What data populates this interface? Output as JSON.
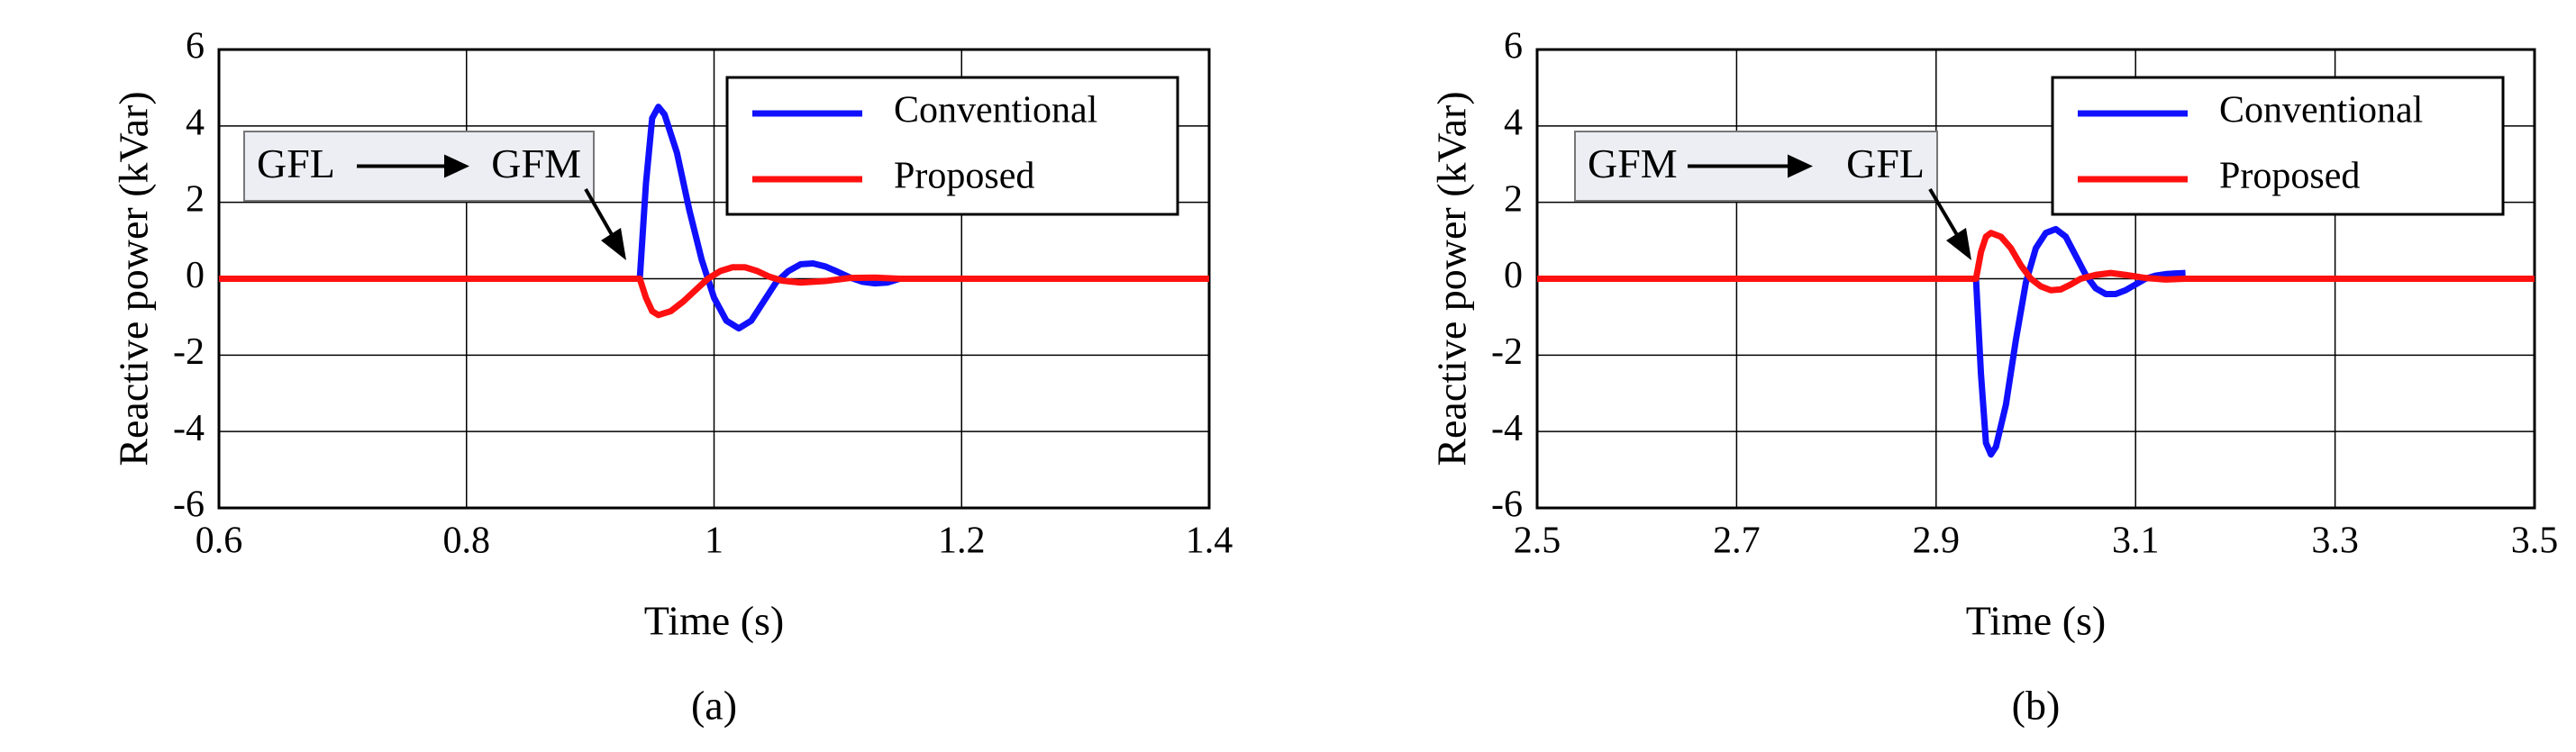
{
  "chart_data": [
    {
      "type": "line",
      "y_label": "Reactive power (kVar)",
      "x_label": "Time (s)",
      "caption": "(a)",
      "xlim": [
        0.6,
        1.4
      ],
      "xticks": [
        0.6,
        0.8,
        1,
        1.2,
        1.4
      ],
      "ylim": [
        -6,
        6
      ],
      "yticks": [
        -6,
        -4,
        -2,
        0,
        2,
        4,
        6
      ],
      "grid": true,
      "legend": "upper right",
      "annotation": {
        "from": "GFL",
        "to": "GFM"
      },
      "series": [
        {
          "name": "Conventional",
          "color": "#1010ff",
          "x": [
            0.94,
            0.945,
            0.95,
            0.955,
            0.96,
            0.97,
            0.98,
            0.99,
            1.0,
            1.01,
            1.02,
            1.03,
            1.04,
            1.05,
            1.06,
            1.07,
            1.08,
            1.09,
            1.1,
            1.11,
            1.12,
            1.13,
            1.14,
            1.15
          ],
          "values": [
            0,
            2.5,
            4.2,
            4.5,
            4.3,
            3.3,
            1.8,
            0.5,
            -0.5,
            -1.1,
            -1.3,
            -1.1,
            -0.6,
            -0.1,
            0.2,
            0.38,
            0.4,
            0.32,
            0.18,
            0.03,
            -0.08,
            -0.12,
            -0.1,
            0
          ]
        },
        {
          "name": "Proposed",
          "color": "#ff1010",
          "x": [
            0.6,
            0.94,
            0.945,
            0.95,
            0.955,
            0.965,
            0.975,
            0.985,
            0.995,
            1.005,
            1.015,
            1.025,
            1.035,
            1.045,
            1.055,
            1.07,
            1.09,
            1.11,
            1.13,
            1.15,
            1.4
          ],
          "values": [
            0,
            0,
            -0.5,
            -0.85,
            -0.95,
            -0.85,
            -0.6,
            -0.3,
            0,
            0.2,
            0.3,
            0.3,
            0.2,
            0.05,
            -0.05,
            -0.1,
            -0.06,
            0.02,
            0.03,
            0,
            0
          ]
        }
      ]
    },
    {
      "type": "line",
      "y_label": "Reactive power (kVar)",
      "x_label": "Time (s)",
      "caption": "(b)",
      "xlim": [
        2.5,
        3.5
      ],
      "xticks": [
        2.5,
        2.7,
        2.9,
        3.1,
        3.3,
        3.5
      ],
      "ylim": [
        -6,
        6
      ],
      "yticks": [
        -6,
        -4,
        -2,
        0,
        2,
        4,
        6
      ],
      "grid": true,
      "legend": "upper right",
      "annotation": {
        "from": "GFM",
        "to": "GFL"
      },
      "series": [
        {
          "name": "Conventional",
          "color": "#1010ff",
          "x": [
            2.94,
            2.945,
            2.95,
            2.955,
            2.96,
            2.97,
            2.98,
            2.99,
            3.0,
            3.01,
            3.02,
            3.03,
            3.04,
            3.05,
            3.06,
            3.07,
            3.08,
            3.09,
            3.1,
            3.11,
            3.12,
            3.13,
            3.14,
            3.15
          ],
          "values": [
            0,
            -2.5,
            -4.3,
            -4.6,
            -4.4,
            -3.3,
            -1.6,
            -0.1,
            0.8,
            1.2,
            1.3,
            1.1,
            0.6,
            0.1,
            -0.25,
            -0.4,
            -0.4,
            -0.3,
            -0.15,
            0,
            0.08,
            0.12,
            0.14,
            0.15
          ]
        },
        {
          "name": "Proposed",
          "color": "#ff1010",
          "x": [
            2.5,
            2.94,
            2.945,
            2.95,
            2.955,
            2.965,
            2.975,
            2.985,
            2.995,
            3.005,
            3.015,
            3.025,
            3.035,
            3.045,
            3.06,
            3.075,
            3.09,
            3.11,
            3.13,
            3.15,
            3.5
          ],
          "values": [
            0,
            0,
            0.7,
            1.1,
            1.2,
            1.1,
            0.8,
            0.35,
            0,
            -0.2,
            -0.3,
            -0.28,
            -0.15,
            0,
            0.1,
            0.15,
            0.1,
            0.02,
            -0.02,
            0,
            0
          ]
        }
      ]
    }
  ]
}
